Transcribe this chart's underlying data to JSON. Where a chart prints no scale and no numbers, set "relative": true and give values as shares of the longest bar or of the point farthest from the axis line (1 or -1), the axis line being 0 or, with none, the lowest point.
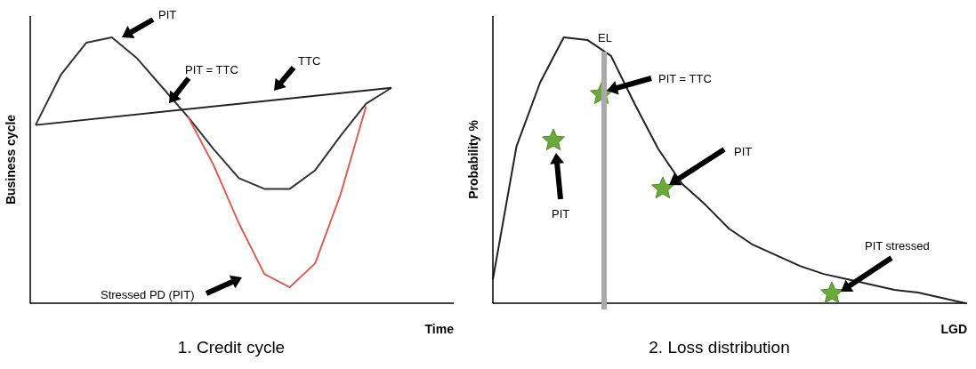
{
  "chart_data": [
    {
      "type": "line",
      "title": "1. Credit cycle",
      "xlabel": "Time",
      "ylabel": "Business cycle",
      "relative": true,
      "tick_labels": false,
      "legend": false,
      "grid": false,
      "marker": "none",
      "categories": [
        null,
        null,
        null,
        null,
        null,
        null,
        null,
        null,
        null,
        null,
        null,
        null,
        null,
        null,
        null
      ],
      "series": [
        {
          "color": "#333333",
          "values": [
            0.67,
            0.86,
            0.98,
            1.0,
            0.92,
            0.81,
            0.7,
            0.58,
            0.47,
            0.43,
            0.43,
            0.5,
            0.63,
            0.75,
            0.81
          ]
        },
        {
          "color": "#222222",
          "values": [
            0.67,
            null,
            null,
            null,
            null,
            null,
            null,
            null,
            null,
            null,
            null,
            null,
            null,
            null,
            0.81
          ]
        },
        {
          "color": "#d9605a",
          "values": [
            null,
            null,
            null,
            null,
            null,
            null,
            0.7,
            0.52,
            0.3,
            0.11,
            0.06,
            0.15,
            0.41,
            0.74,
            null
          ]
        }
      ],
      "annotations": [
        "PIT",
        "PIT = TTC",
        "TTC",
        "Stressed PD (PIT)"
      ]
    },
    {
      "type": "line",
      "title": "2. Loss distribution",
      "xlabel": "LGD",
      "ylabel": "Probability %",
      "relative": true,
      "tick_labels": false,
      "legend": false,
      "grid": false,
      "categories": [
        null,
        null,
        null,
        null,
        null,
        null,
        null,
        null,
        null,
        null,
        null,
        null,
        null,
        null,
        null,
        null,
        null,
        null,
        null,
        null,
        null
      ],
      "series": [
        {
          "color": "#222222",
          "marker": "none",
          "values": [
            0.09,
            0.59,
            0.83,
            1.0,
            0.99,
            0.93,
            0.75,
            0.58,
            0.45,
            0.37,
            0.28,
            0.22,
            0.18,
            0.14,
            0.11,
            0.09,
            0.07,
            0.05,
            0.04,
            0.02,
            0
          ]
        }
      ],
      "annotations": [
        "PIT = TTC",
        "PIT",
        "PIT",
        "PIT stressed",
        "EL"
      ]
    }
  ]
}
